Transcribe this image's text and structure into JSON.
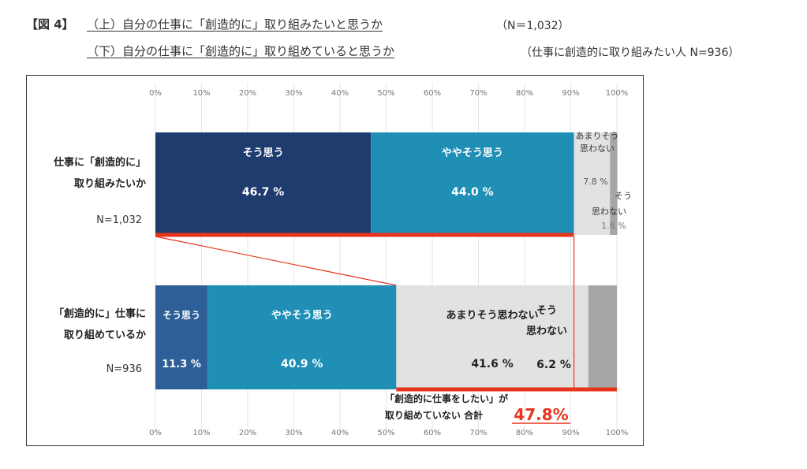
{
  "header": {
    "figure_label": "【図 4】",
    "title_top": "（上）自分の仕事に「創造的に」取り組みたいと思うか",
    "title_top_n": "（N＝1,032）",
    "title_bottom": "（下）自分の仕事に「創造的に」取り組めていると思うか",
    "title_bottom_note": "（仕事に創造的に取り組みたい人 N=936）"
  },
  "chart_data": {
    "type": "bar",
    "orientation": "horizontal",
    "stacked": true,
    "xlim": [
      0,
      100
    ],
    "x_ticks": [
      "0%",
      "10%",
      "20%",
      "30%",
      "40%",
      "50%",
      "60%",
      "70%",
      "80%",
      "90%",
      "100%"
    ],
    "grid": true,
    "bars": [
      {
        "label_lines": [
          "仕事に「創造的に」",
          "取り組みたいか"
        ],
        "n_label": "N=1,032",
        "segments": [
          {
            "name_lines": [
              "そう思う"
            ],
            "value": 46.7,
            "value_label": "46.7 %",
            "color": "#1f3c6e"
          },
          {
            "name_lines": [
              "ややそう思う"
            ],
            "value": 44.0,
            "value_label": "44.0 %",
            "color": "#1f8fb5"
          },
          {
            "name_lines": [
              "あまりそう",
              "思わない"
            ],
            "value": 7.8,
            "value_label": "7.8 %",
            "color": "#e2e2e2"
          },
          {
            "name_lines": [
              "そう",
              "思わない"
            ],
            "value": 1.6,
            "value_label": "1.6 %",
            "color": "#a6a6a6"
          }
        ]
      },
      {
        "label_lines": [
          "「創造的に」仕事に",
          "取り組めているか"
        ],
        "n_label": "N=936",
        "segments": [
          {
            "name_lines": [
              "そう思う"
            ],
            "value": 11.3,
            "value_label": "11.3 %",
            "color": "#2e5f96"
          },
          {
            "name_lines": [
              "ややそう思う"
            ],
            "value": 40.9,
            "value_label": "40.9 %",
            "color": "#1f8fb5"
          },
          {
            "name_lines": [
              "あまりそう思わない"
            ],
            "value": 41.6,
            "value_label": "41.6 %",
            "color": "#e2e2e2"
          },
          {
            "name_lines": [
              "そう",
              "思わない"
            ],
            "value": 6.2,
            "value_label": "6.2 %",
            "color": "#a6a6a6"
          }
        ]
      }
    ],
    "annotation": {
      "lines": [
        "「創造的に仕事をしたい」が",
        "取り組めていない 合計"
      ],
      "total_label": "47.8%",
      "total_value": 47.8,
      "highlight_color": "#e8341c"
    }
  }
}
